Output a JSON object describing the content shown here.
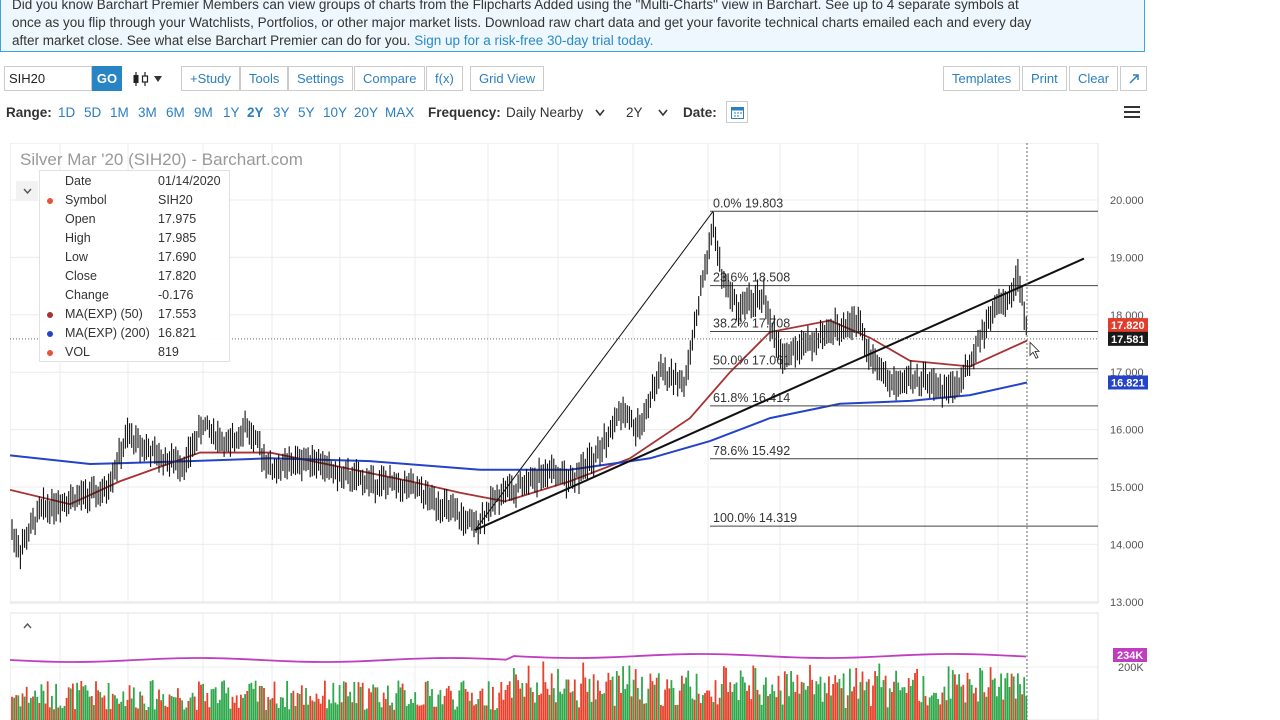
{
  "promo": {
    "line1": "Did you know Barchart Premier Members can view groups of charts from the Flipcharts Added using the \"Multi-Charts\" view in Barchart. See up to 4 separate symbols at",
    "line2": "once as you flip through your Watchlists, Portfolios, or other major market lists. Download raw chart data and get your favorite technical charts emailed each and every day",
    "line3": "after market close. See what else Barchart Premier can do for you.",
    "link": "Sign up for a risk-free 30-day trial today."
  },
  "toolbar": {
    "symbol_value": "SIH20",
    "go_label": "GO",
    "study_label": "+Study",
    "tools_label": "Tools",
    "settings_label": "Settings",
    "compare_label": "Compare",
    "fx_label": "f(x)",
    "grid_view_label": "Grid View",
    "templates_label": "Templates",
    "print_label": "Print",
    "clear_label": "Clear"
  },
  "range_bar": {
    "range_label": "Range:",
    "ranges": [
      "1D",
      "5D",
      "1M",
      "3M",
      "6M",
      "9M",
      "1Y",
      "2Y",
      "3Y",
      "5Y",
      "10Y",
      "20Y",
      "MAX"
    ],
    "active_range": "2Y",
    "frequency_label": "Frequency:",
    "frequency_value": "Daily Nearby",
    "period_value": "2Y",
    "date_label": "Date:"
  },
  "chart": {
    "title": "Silver Mar '20 (SIH20) - Barchart.com",
    "info": [
      {
        "key": "Date",
        "value": "01/14/2020",
        "dot": ""
      },
      {
        "key": "Symbol",
        "value": "SIH20",
        "dot": "#e8533a"
      },
      {
        "key": "Open",
        "value": "17.975",
        "dot": ""
      },
      {
        "key": "High",
        "value": "17.985",
        "dot": ""
      },
      {
        "key": "Low",
        "value": "17.690",
        "dot": ""
      },
      {
        "key": "Close",
        "value": "17.820",
        "dot": ""
      },
      {
        "key": "Change",
        "value": "-0.176",
        "dot": ""
      },
      {
        "key": "MA(EXP) (50)",
        "value": "17.553",
        "dot": "#a83232"
      },
      {
        "key": "MA(EXP) (200)",
        "value": "16.821",
        "dot": "#2443c8"
      },
      {
        "key": "VOL",
        "value": "819",
        "dot": "#e8533a"
      }
    ],
    "y_ticks": [
      "20.000",
      "19.000",
      "18.000",
      "17.000",
      "16.000",
      "15.000",
      "14.000",
      "13.000"
    ],
    "price_badges": [
      {
        "label": "17.820",
        "color": "#e23c2c"
      },
      {
        "label": "17.581",
        "color": "#1a1a1a"
      },
      {
        "label": "16.821",
        "color": "#2443c8"
      }
    ],
    "fib_levels": [
      {
        "label": "0.0% 19.803",
        "price": 19.803
      },
      {
        "label": "23.6% 18.508",
        "price": 18.508
      },
      {
        "label": "38.2% 17.708",
        "price": 17.708
      },
      {
        "label": "50.0% 17.061",
        "price": 17.061
      },
      {
        "label": "61.8% 16.414",
        "price": 16.414
      },
      {
        "label": "78.6% 15.492",
        "price": 15.492
      },
      {
        "label": "100.0% 14.319",
        "price": 14.319
      }
    ],
    "volume_badges": [
      {
        "label": "234K",
        "color": "#c03cc0"
      }
    ],
    "volume_ticks": [
      "200K"
    ],
    "colors": {
      "ma50": "#a83232",
      "ma200": "#2443c8",
      "candle": "#111111",
      "vol_up": "#2ea84a",
      "vol_down": "#e8402a",
      "vol_avg": "#c03cc0"
    }
  }
}
